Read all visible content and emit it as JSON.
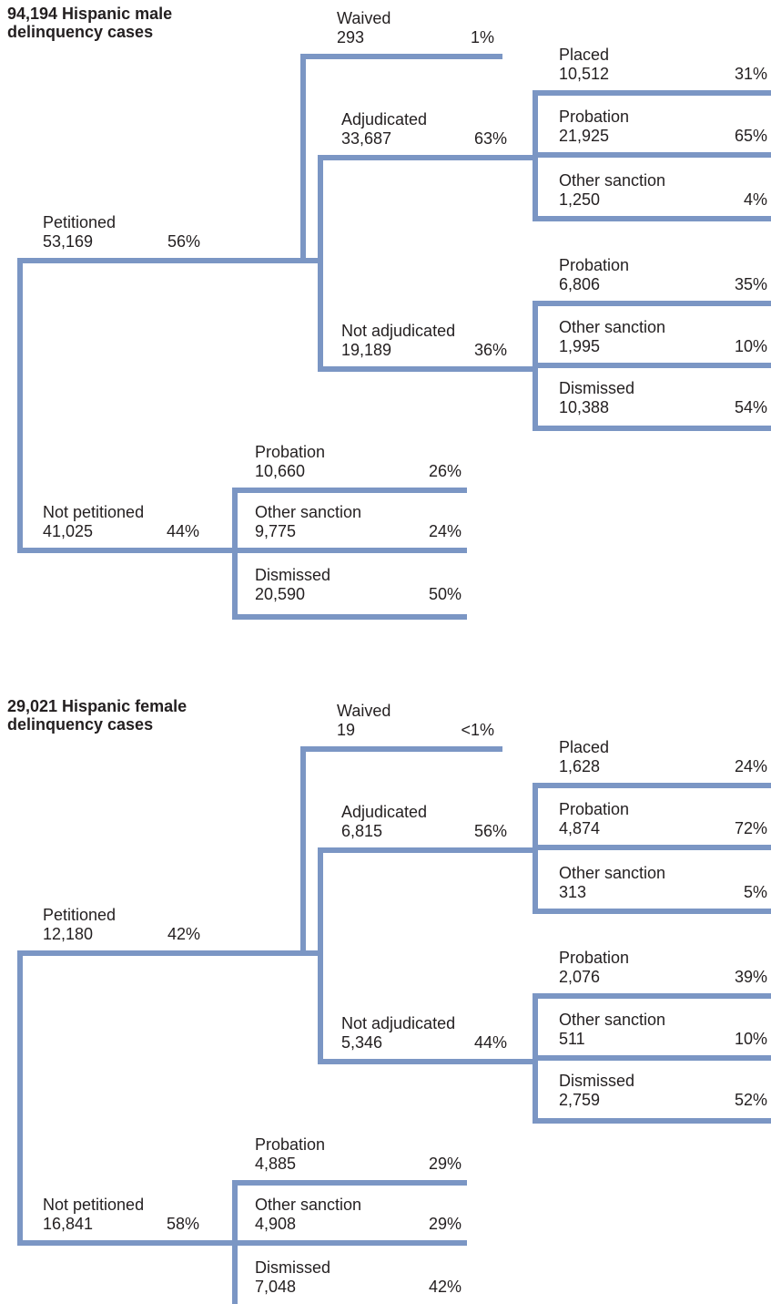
{
  "trees": [
    {
      "title": [
        "94,194 Hispanic male",
        "delinquency cases"
      ],
      "petitioned": {
        "label": "Petitioned",
        "count": "53,169",
        "pct": "56%"
      },
      "waived": {
        "label": "Waived",
        "count": "293",
        "pct": "1%"
      },
      "adjudicated": {
        "label": "Adjudicated",
        "count": "33,687",
        "pct": "63%"
      },
      "adjudicated_outcomes": [
        {
          "label": "Placed",
          "count": "10,512",
          "pct": "31%"
        },
        {
          "label": "Probation",
          "count": "21,925",
          "pct": "65%"
        },
        {
          "label": "Other sanction",
          "count": "1,250",
          "pct": "4%"
        }
      ],
      "not_adjudicated": {
        "label": "Not adjudicated",
        "count": "19,189",
        "pct": "36%"
      },
      "not_adjudicated_outcomes": [
        {
          "label": "Probation",
          "count": "6,806",
          "pct": "35%"
        },
        {
          "label": "Other sanction",
          "count": "1,995",
          "pct": "10%"
        },
        {
          "label": "Dismissed",
          "count": "10,388",
          "pct": "54%"
        }
      ],
      "not_petitioned": {
        "label": "Not petitioned",
        "count": "41,025",
        "pct": "44%"
      },
      "not_petitioned_outcomes": [
        {
          "label": "Probation",
          "count": "10,660",
          "pct": "26%"
        },
        {
          "label": "Other sanction",
          "count": "9,775",
          "pct": "24%"
        },
        {
          "label": "Dismissed",
          "count": "20,590",
          "pct": "50%"
        }
      ]
    },
    {
      "title": [
        "29,021 Hispanic female",
        "delinquency cases"
      ],
      "petitioned": {
        "label": "Petitioned",
        "count": "12,180",
        "pct": "42%"
      },
      "waived": {
        "label": "Waived",
        "count": "19",
        "pct": "<1%"
      },
      "adjudicated": {
        "label": "Adjudicated",
        "count": "6,815",
        "pct": "56%"
      },
      "adjudicated_outcomes": [
        {
          "label": "Placed",
          "count": "1,628",
          "pct": "24%"
        },
        {
          "label": "Probation",
          "count": "4,874",
          "pct": "72%"
        },
        {
          "label": "Other sanction",
          "count": "313",
          "pct": "5%"
        }
      ],
      "not_adjudicated": {
        "label": "Not adjudicated",
        "count": "5,346",
        "pct": "44%"
      },
      "not_adjudicated_outcomes": [
        {
          "label": "Probation",
          "count": "2,076",
          "pct": "39%"
        },
        {
          "label": "Other sanction",
          "count": "511",
          "pct": "10%"
        },
        {
          "label": "Dismissed",
          "count": "2,759",
          "pct": "52%"
        }
      ],
      "not_petitioned": {
        "label": "Not petitioned",
        "count": "16,841",
        "pct": "58%"
      },
      "not_petitioned_outcomes": [
        {
          "label": "Probation",
          "count": "4,885",
          "pct": "29%"
        },
        {
          "label": "Other sanction",
          "count": "4,908",
          "pct": "29%"
        },
        {
          "label": "Dismissed",
          "count": "7,048",
          "pct": "42%"
        }
      ]
    }
  ]
}
